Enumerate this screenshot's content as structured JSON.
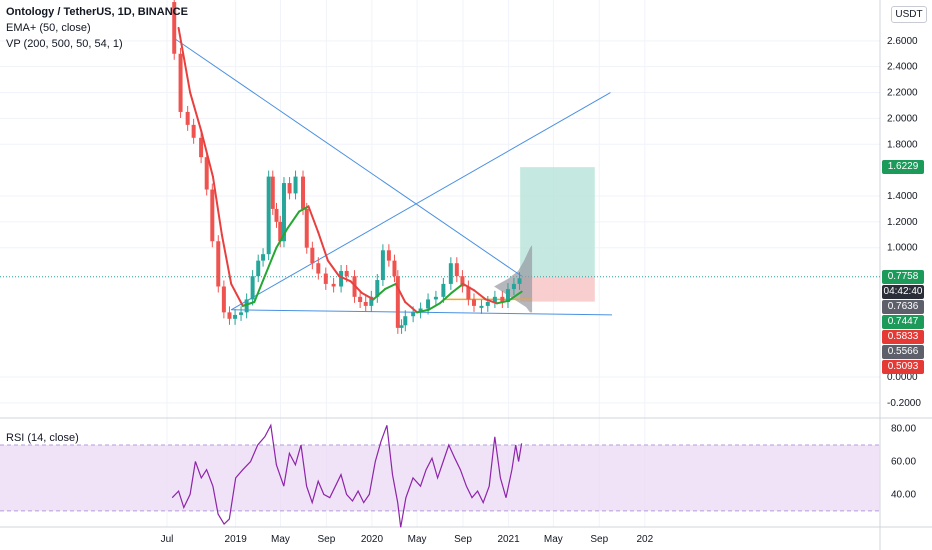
{
  "legend": {
    "symbol": "Ontology / TetherUS, 1D, BINANCE",
    "ema": "EMA+ (50, close)",
    "vp": "VP (200, 500, 50, 54, 1)",
    "rsi": "RSI (14, close)"
  },
  "currency_button": "USDT",
  "colors": {
    "ema_up": "#26a633",
    "ema_down": "#e8403f",
    "trendline": "#4a90e2",
    "rsi_line": "#8e24aa",
    "rsi_band": "#e9d7f4",
    "tp_zone": "#b6e3d8",
    "sl_zone": "#f7c5c5",
    "badge_green": "#1b9a5a",
    "badge_red": "#e53935",
    "badge_gray": "#5d606b",
    "badge_dark": "#2a2e39"
  },
  "badges": [
    {
      "value": 1.6229,
      "text": "1.6229",
      "color": "#1b9a5a"
    },
    {
      "value": 0.7758,
      "text": "0.7758",
      "color": "#1b9a5a"
    },
    {
      "value": 0.7636,
      "text": "04:42:40",
      "color": "#2a2e39"
    },
    {
      "value": 0.7636,
      "text": "0.7636",
      "color": "#5d606b"
    },
    {
      "value": 0.7447,
      "text": "0.7447",
      "color": "#1b9a5a"
    },
    {
      "value": 0.5833,
      "text": "0.5833",
      "color": "#e53935"
    },
    {
      "value": 0.5566,
      "text": "0.5566",
      "color": "#5d606b"
    },
    {
      "value": 0.5093,
      "text": "0.5093",
      "color": "#e53935"
    }
  ],
  "chart_data": {
    "type": "line",
    "title": "Ontology / TetherUS, 1D, BINANCE",
    "x_ticks": [
      "Jul",
      "2019",
      "May",
      "Sep",
      "2020",
      "May",
      "Sep",
      "2021",
      "May",
      "Sep",
      "202"
    ],
    "x_tick_dates": [
      "2018-07-01",
      "2019-01-01",
      "2019-05-01",
      "2019-09-01",
      "2020-01-01",
      "2020-05-01",
      "2020-09-01",
      "2021-01-01",
      "2021-05-01",
      "2021-09-01",
      "2022-01-01"
    ],
    "y_ticks": [
      "2.6000",
      "2.4000",
      "2.2000",
      "2.0000",
      "1.8000",
      "1.4000",
      "1.2000",
      "1.0000",
      "0.0000",
      "-0.2000"
    ],
    "y_tick_values": [
      2.6,
      2.4,
      2.2,
      2.0,
      1.8,
      1.4,
      1.2,
      1.0,
      0.0,
      -0.2
    ],
    "ylim": [
      -0.28,
      2.95
    ],
    "series": [
      {
        "points": [
          [
            "2018-07-15",
            2.9
          ],
          [
            "2018-08-01",
            2.5
          ],
          [
            "2018-08-20",
            2.05
          ],
          [
            "2018-09-05",
            1.95
          ],
          [
            "2018-09-25",
            1.85
          ],
          [
            "2018-10-10",
            1.7
          ],
          [
            "2018-10-25",
            1.45
          ],
          [
            "2018-11-10",
            1.05
          ],
          [
            "2018-11-25",
            0.7
          ],
          [
            "2018-12-10",
            0.5
          ],
          [
            "2018-12-25",
            0.45
          ],
          [
            "2019-01-10",
            0.48
          ],
          [
            "2019-01-25",
            0.5
          ],
          [
            "2019-02-10",
            0.6
          ],
          [
            "2019-02-25",
            0.78
          ],
          [
            "2019-03-10",
            0.9
          ],
          [
            "2019-03-25",
            0.95
          ],
          [
            "2019-04-05",
            1.55
          ],
          [
            "2019-04-15",
            1.3
          ],
          [
            "2019-04-25",
            1.2
          ],
          [
            "2019-05-05",
            1.05
          ],
          [
            "2019-05-20",
            1.5
          ],
          [
            "2019-06-05",
            1.42
          ],
          [
            "2019-06-25",
            1.55
          ],
          [
            "2019-07-05",
            1.3
          ],
          [
            "2019-07-20",
            1.0
          ],
          [
            "2019-08-05",
            0.88
          ],
          [
            "2019-08-25",
            0.8
          ],
          [
            "2019-09-15",
            0.72
          ],
          [
            "2019-10-05",
            0.7
          ],
          [
            "2019-10-20",
            0.82
          ],
          [
            "2019-11-10",
            0.78
          ],
          [
            "2019-11-25",
            0.62
          ],
          [
            "2019-12-10",
            0.58
          ],
          [
            "2019-12-25",
            0.55
          ],
          [
            "2020-01-10",
            0.62
          ],
          [
            "2020-01-25",
            0.75
          ],
          [
            "2020-02-10",
            0.98
          ],
          [
            "2020-02-25",
            0.9
          ],
          [
            "2020-03-05",
            0.78
          ],
          [
            "2020-03-15",
            0.38
          ],
          [
            "2020-03-25",
            0.4
          ],
          [
            "2020-04-15",
            0.47
          ],
          [
            "2020-05-05",
            0.5
          ],
          [
            "2020-05-25",
            0.53
          ],
          [
            "2020-06-15",
            0.6
          ],
          [
            "2020-07-05",
            0.62
          ],
          [
            "2020-07-25",
            0.72
          ],
          [
            "2020-08-10",
            0.88
          ],
          [
            "2020-08-25",
            0.78
          ],
          [
            "2020-09-10",
            0.7
          ],
          [
            "2020-09-25",
            0.6
          ],
          [
            "2020-10-15",
            0.55
          ],
          [
            "2020-11-01",
            0.55
          ],
          [
            "2020-11-20",
            0.58
          ],
          [
            "2020-12-10",
            0.62
          ],
          [
            "2020-12-25",
            0.58
          ],
          [
            "2021-01-10",
            0.68
          ],
          [
            "2021-01-25",
            0.72
          ],
          [
            "2021-02-05",
            0.7636
          ]
        ]
      },
      {
        "name": "EMA+ (50, close)",
        "points": [
          [
            "2018-08-01",
            2.7
          ],
          [
            "2018-09-01",
            2.2
          ],
          [
            "2018-10-01",
            1.9
          ],
          [
            "2018-11-01",
            1.55
          ],
          [
            "2018-11-25",
            1.1
          ],
          [
            "2018-12-20",
            0.72
          ],
          [
            "2019-01-20",
            0.55
          ],
          [
            "2019-02-20",
            0.58
          ],
          [
            "2019-03-20",
            0.78
          ],
          [
            "2019-04-20",
            1.0
          ],
          [
            "2019-05-20",
            1.15
          ],
          [
            "2019-06-20",
            1.28
          ],
          [
            "2019-07-15",
            1.32
          ],
          [
            "2019-08-10",
            1.12
          ],
          [
            "2019-09-05",
            0.9
          ],
          [
            "2019-10-05",
            0.78
          ],
          [
            "2019-11-05",
            0.74
          ],
          [
            "2019-12-05",
            0.65
          ],
          [
            "2020-01-05",
            0.6
          ],
          [
            "2020-02-05",
            0.68
          ],
          [
            "2020-03-05",
            0.72
          ],
          [
            "2020-03-30",
            0.58
          ],
          [
            "2020-05-01",
            0.5
          ],
          [
            "2020-06-01",
            0.52
          ],
          [
            "2020-07-01",
            0.57
          ],
          [
            "2020-08-01",
            0.65
          ],
          [
            "2020-09-01",
            0.72
          ],
          [
            "2020-10-01",
            0.67
          ],
          [
            "2020-11-01",
            0.6
          ],
          [
            "2020-12-01",
            0.57
          ],
          [
            "2021-01-01",
            0.59
          ],
          [
            "2021-02-05",
            0.66
          ]
        ]
      }
    ],
    "trendlines": [
      {
        "from": [
          "2018-07-20",
          2.62
        ],
        "to": [
          "2021-02-05",
          0.78
        ]
      },
      {
        "from": [
          "2018-12-20",
          0.52
        ],
        "to": [
          "2021-10-01",
          2.2
        ]
      },
      {
        "from": [
          "2018-12-20",
          0.52
        ],
        "to": [
          "2021-10-05",
          0.48
        ]
      }
    ],
    "position": {
      "entry": 0.7758,
      "target": 1.6229,
      "stop": 0.5833,
      "start": "2021-02-01",
      "end": "2021-08-20"
    },
    "rsi": {
      "name": "RSI (14, close)",
      "y_ticks": [
        "80.00",
        "60.00",
        "40.00"
      ],
      "y_tick_values": [
        80,
        60,
        40
      ],
      "upper_band": 70,
      "lower_band": 30,
      "ylim": [
        22,
        84
      ],
      "points": [
        [
          "2018-07-15",
          38
        ],
        [
          "2018-08-01",
          42
        ],
        [
          "2018-08-15",
          32
        ],
        [
          "2018-09-01",
          40
        ],
        [
          "2018-09-15",
          60
        ],
        [
          "2018-10-01",
          50
        ],
        [
          "2018-10-15",
          55
        ],
        [
          "2018-11-01",
          45
        ],
        [
          "2018-11-15",
          28
        ],
        [
          "2018-12-01",
          22
        ],
        [
          "2018-12-15",
          25
        ],
        [
          "2019-01-01",
          50
        ],
        [
          "2019-01-20",
          55
        ],
        [
          "2019-02-10",
          60
        ],
        [
          "2019-03-01",
          70
        ],
        [
          "2019-03-20",
          75
        ],
        [
          "2019-04-05",
          82
        ],
        [
          "2019-04-20",
          58
        ],
        [
          "2019-05-10",
          45
        ],
        [
          "2019-05-25",
          65
        ],
        [
          "2019-06-10",
          58
        ],
        [
          "2019-06-25",
          70
        ],
        [
          "2019-07-10",
          45
        ],
        [
          "2019-07-25",
          35
        ],
        [
          "2019-08-10",
          48
        ],
        [
          "2019-08-25",
          40
        ],
        [
          "2019-09-10",
          38
        ],
        [
          "2019-09-25",
          45
        ],
        [
          "2019-10-10",
          52
        ],
        [
          "2019-10-25",
          40
        ],
        [
          "2019-11-10",
          36
        ],
        [
          "2019-11-25",
          42
        ],
        [
          "2019-12-10",
          35
        ],
        [
          "2019-12-25",
          40
        ],
        [
          "2020-01-10",
          60
        ],
        [
          "2020-01-25",
          72
        ],
        [
          "2020-02-10",
          82
        ],
        [
          "2020-02-25",
          52
        ],
        [
          "2020-03-10",
          35
        ],
        [
          "2020-03-18",
          20
        ],
        [
          "2020-04-01",
          38
        ],
        [
          "2020-04-20",
          50
        ],
        [
          "2020-05-10",
          45
        ],
        [
          "2020-05-25",
          55
        ],
        [
          "2020-06-10",
          62
        ],
        [
          "2020-06-25",
          50
        ],
        [
          "2020-07-10",
          60
        ],
        [
          "2020-07-25",
          70
        ],
        [
          "2020-08-10",
          62
        ],
        [
          "2020-08-25",
          55
        ],
        [
          "2020-09-10",
          45
        ],
        [
          "2020-09-25",
          38
        ],
        [
          "2020-10-10",
          42
        ],
        [
          "2020-10-25",
          35
        ],
        [
          "2020-11-10",
          45
        ],
        [
          "2020-11-25",
          75
        ],
        [
          "2020-12-10",
          50
        ],
        [
          "2020-12-25",
          38
        ],
        [
          "2021-01-10",
          55
        ],
        [
          "2021-01-20",
          70
        ],
        [
          "2021-01-28",
          60
        ],
        [
          "2021-02-05",
          71
        ]
      ]
    }
  }
}
